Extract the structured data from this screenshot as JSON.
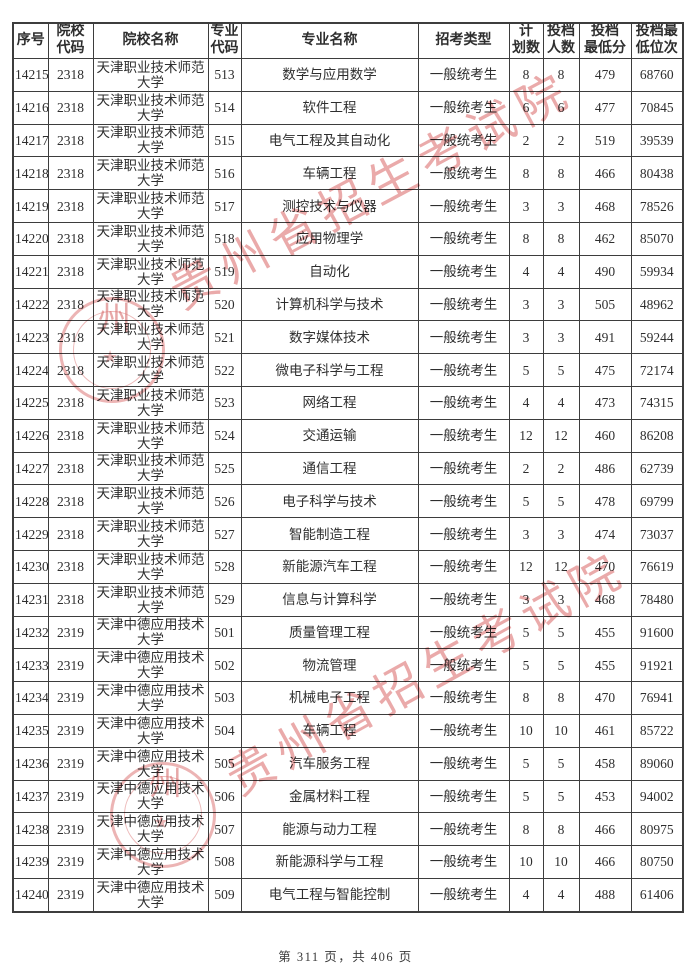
{
  "watermark": {
    "text": "贵州省招生考试院",
    "seal_char": "州",
    "seal_star": "★",
    "color": "#d96464"
  },
  "table": {
    "headers": [
      {
        "id": "seq",
        "label": "序号"
      },
      {
        "id": "college-code",
        "label": "院校\n代码"
      },
      {
        "id": "college-name",
        "label": "院校名称"
      },
      {
        "id": "major-code",
        "label": "专业\n代码"
      },
      {
        "id": "major-name",
        "label": "专业名称"
      },
      {
        "id": "exam-type",
        "label": "招考类型"
      },
      {
        "id": "plan-count",
        "label": "计\n划数"
      },
      {
        "id": "filed-count",
        "label": "投档\n人数"
      },
      {
        "id": "min-score",
        "label": "投档\n最低分"
      },
      {
        "id": "min-rank",
        "label": "投档最\n低位次"
      }
    ],
    "rows": [
      [
        "14215",
        "2318",
        "天津职业技术师范\n大学",
        "513",
        "数学与应用数学",
        "一般统考生",
        "8",
        "8",
        "479",
        "68760"
      ],
      [
        "14216",
        "2318",
        "天津职业技术师范\n大学",
        "514",
        "软件工程",
        "一般统考生",
        "6",
        "6",
        "477",
        "70845"
      ],
      [
        "14217",
        "2318",
        "天津职业技术师范\n大学",
        "515",
        "电气工程及其自动化",
        "一般统考生",
        "2",
        "2",
        "519",
        "39539"
      ],
      [
        "14218",
        "2318",
        "天津职业技术师范\n大学",
        "516",
        "车辆工程",
        "一般统考生",
        "8",
        "8",
        "466",
        "80438"
      ],
      [
        "14219",
        "2318",
        "天津职业技术师范\n大学",
        "517",
        "测控技术与仪器",
        "一般统考生",
        "3",
        "3",
        "468",
        "78526"
      ],
      [
        "14220",
        "2318",
        "天津职业技术师范\n大学",
        "518",
        "应用物理学",
        "一般统考生",
        "8",
        "8",
        "462",
        "85070"
      ],
      [
        "14221",
        "2318",
        "天津职业技术师范\n大学",
        "519",
        "自动化",
        "一般统考生",
        "4",
        "4",
        "490",
        "59934"
      ],
      [
        "14222",
        "2318",
        "天津职业技术师范\n大学",
        "520",
        "计算机科学与技术",
        "一般统考生",
        "3",
        "3",
        "505",
        "48962"
      ],
      [
        "14223",
        "2318",
        "天津职业技术师范\n大学",
        "521",
        "数字媒体技术",
        "一般统考生",
        "3",
        "3",
        "491",
        "59244"
      ],
      [
        "14224",
        "2318",
        "天津职业技术师范\n大学",
        "522",
        "微电子科学与工程",
        "一般统考生",
        "5",
        "5",
        "475",
        "72174"
      ],
      [
        "14225",
        "2318",
        "天津职业技术师范\n大学",
        "523",
        "网络工程",
        "一般统考生",
        "4",
        "4",
        "473",
        "74315"
      ],
      [
        "14226",
        "2318",
        "天津职业技术师范\n大学",
        "524",
        "交通运输",
        "一般统考生",
        "12",
        "12",
        "460",
        "86208"
      ],
      [
        "14227",
        "2318",
        "天津职业技术师范\n大学",
        "525",
        "通信工程",
        "一般统考生",
        "2",
        "2",
        "486",
        "62739"
      ],
      [
        "14228",
        "2318",
        "天津职业技术师范\n大学",
        "526",
        "电子科学与技术",
        "一般统考生",
        "5",
        "5",
        "478",
        "69799"
      ],
      [
        "14229",
        "2318",
        "天津职业技术师范\n大学",
        "527",
        "智能制造工程",
        "一般统考生",
        "3",
        "3",
        "474",
        "73037"
      ],
      [
        "14230",
        "2318",
        "天津职业技术师范\n大学",
        "528",
        "新能源汽车工程",
        "一般统考生",
        "12",
        "12",
        "470",
        "76619"
      ],
      [
        "14231",
        "2318",
        "天津职业技术师范\n大学",
        "529",
        "信息与计算科学",
        "一般统考生",
        "3",
        "3",
        "468",
        "78480"
      ],
      [
        "14232",
        "2319",
        "天津中德应用技术\n大学",
        "501",
        "质量管理工程",
        "一般统考生",
        "5",
        "5",
        "455",
        "91600"
      ],
      [
        "14233",
        "2319",
        "天津中德应用技术\n大学",
        "502",
        "物流管理",
        "一般统考生",
        "5",
        "5",
        "455",
        "91921"
      ],
      [
        "14234",
        "2319",
        "天津中德应用技术\n大学",
        "503",
        "机械电子工程",
        "一般统考生",
        "8",
        "8",
        "470",
        "76941"
      ],
      [
        "14235",
        "2319",
        "天津中德应用技术\n大学",
        "504",
        "车辆工程",
        "一般统考生",
        "10",
        "10",
        "461",
        "85722"
      ],
      [
        "14236",
        "2319",
        "天津中德应用技术\n大学",
        "505",
        "汽车服务工程",
        "一般统考生",
        "5",
        "5",
        "458",
        "89060"
      ],
      [
        "14237",
        "2319",
        "天津中德应用技术\n大学",
        "506",
        "金属材料工程",
        "一般统考生",
        "5",
        "5",
        "453",
        "94002"
      ],
      [
        "14238",
        "2319",
        "天津中德应用技术\n大学",
        "507",
        "能源与动力工程",
        "一般统考生",
        "8",
        "8",
        "466",
        "80975"
      ],
      [
        "14239",
        "2319",
        "天津中德应用技术\n大学",
        "508",
        "新能源科学与工程",
        "一般统考生",
        "10",
        "10",
        "466",
        "80750"
      ],
      [
        "14240",
        "2319",
        "天津中德应用技术\n大学",
        "509",
        "电气工程与智能控制",
        "一般统考生",
        "4",
        "4",
        "488",
        "61406"
      ]
    ]
  },
  "footer": {
    "text": "第 311 页，共 406 页"
  }
}
